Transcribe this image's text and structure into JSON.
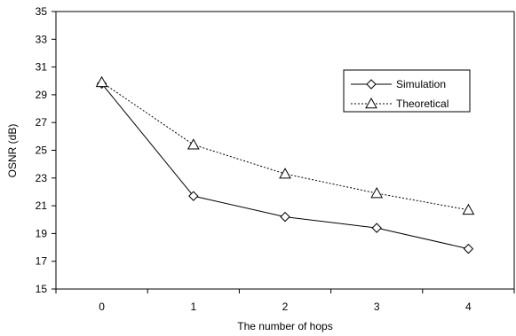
{
  "chart_data": {
    "type": "line",
    "xlabel": "The number of hops",
    "ylabel": "OSNR (dB)",
    "categories": [
      "0",
      "1",
      "2",
      "3",
      "4"
    ],
    "x": [
      0,
      1,
      2,
      3,
      4
    ],
    "ylim": [
      15,
      35
    ],
    "yticks": [
      "15",
      "17",
      "19",
      "21",
      "23",
      "25",
      "27",
      "29",
      "31",
      "33",
      "35"
    ],
    "grid": false,
    "legend_position": "right",
    "series": [
      {
        "name": "Simulation",
        "values": [
          29.8,
          21.7,
          20.2,
          19.4,
          17.9
        ],
        "marker": "diamond",
        "line": "solid",
        "color": "#000000"
      },
      {
        "name": "Theoretical",
        "values": [
          29.9,
          25.4,
          23.3,
          21.9,
          20.7
        ],
        "marker": "triangle",
        "line": "dotted",
        "color": "#000000"
      }
    ]
  }
}
